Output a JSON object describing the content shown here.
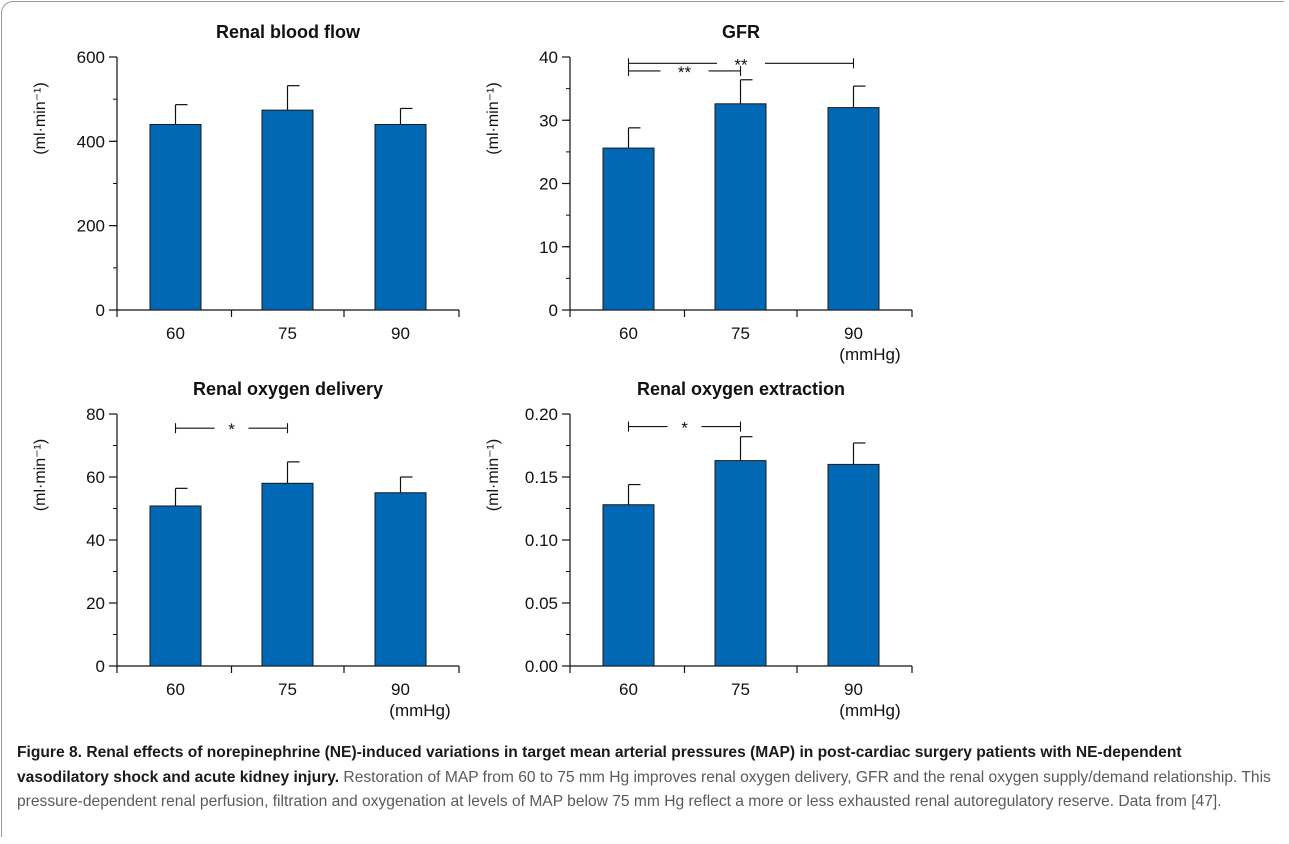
{
  "chart_data": [
    {
      "type": "bar",
      "title": "Renal blood flow",
      "ylabel": "(ml·min⁻¹)",
      "unit_label": "",
      "categories": [
        "60",
        "75",
        "90"
      ],
      "values": [
        440,
        474,
        440
      ],
      "errors": [
        47,
        58,
        38
      ],
      "ylim": [
        0,
        600
      ],
      "yticks": [
        "0",
        "200",
        "400",
        "600"
      ],
      "minor_step": 100,
      "brackets": [],
      "color": "#0068b4"
    },
    {
      "type": "bar",
      "title": "GFR",
      "ylabel": "(ml·min⁻¹)",
      "unit_label": "(mmHg)",
      "categories": [
        "60",
        "75",
        "90"
      ],
      "values": [
        25.6,
        32.6,
        32.0
      ],
      "errors": [
        3.2,
        3.8,
        3.4
      ],
      "ylim": [
        0,
        40
      ],
      "yticks": [
        "0",
        "10",
        "20",
        "30",
        "40"
      ],
      "minor_step": 5,
      "brackets": [
        {
          "from": 0,
          "to": 2,
          "label": "**",
          "y": 39
        },
        {
          "from": 0,
          "to": 1,
          "label": "**",
          "y": 37.8
        }
      ],
      "color": "#0068b4"
    },
    {
      "type": "bar",
      "title": "Renal oxygen delivery",
      "ylabel": "(ml·min⁻¹)",
      "unit_label": "(mmHg)",
      "categories": [
        "60",
        "75",
        "90"
      ],
      "values": [
        50.8,
        58.0,
        55.0
      ],
      "errors": [
        5.6,
        6.8,
        5.0
      ],
      "ylim": [
        0,
        80
      ],
      "yticks": [
        "0",
        "20",
        "40",
        "60",
        "80"
      ],
      "minor_step": 10,
      "brackets": [
        {
          "from": 0,
          "to": 1,
          "label": "*",
          "y": 75.5
        }
      ],
      "color": "#0068b4"
    },
    {
      "type": "bar",
      "title": "Renal oxygen extraction",
      "ylabel": "(ml·min⁻¹)",
      "unit_label": "(mmHg)",
      "categories": [
        "60",
        "75",
        "90"
      ],
      "values": [
        0.128,
        0.163,
        0.16
      ],
      "errors": [
        0.016,
        0.019,
        0.017
      ],
      "ylim": [
        0,
        0.2
      ],
      "yticks": [
        "0.00",
        "0.05",
        "0.10",
        "0.15",
        "0.20"
      ],
      "minor_step": 0.025,
      "brackets": [
        {
          "from": 0,
          "to": 1,
          "label": "*",
          "y": 0.19
        }
      ],
      "color": "#0068b4"
    }
  ],
  "caption": {
    "lead": "Figure 8. Renal effects of norepinephrine (NE)-induced variations in target mean arterial pressures (MAP) in post-cardiac surgery patients with NE-dependent vasodilatory shock and acute kidney injury.",
    "body": " Restoration of MAP from 60 to 75 mm Hg improves renal oxygen delivery, GFR and the renal oxygen supply/demand relationship. This pressure-dependent renal perfusion, filtration and oxygenation at levels of MAP below 75 mm Hg reflect a more or less exhausted renal autoregulatory reserve. Data from [47]."
  }
}
